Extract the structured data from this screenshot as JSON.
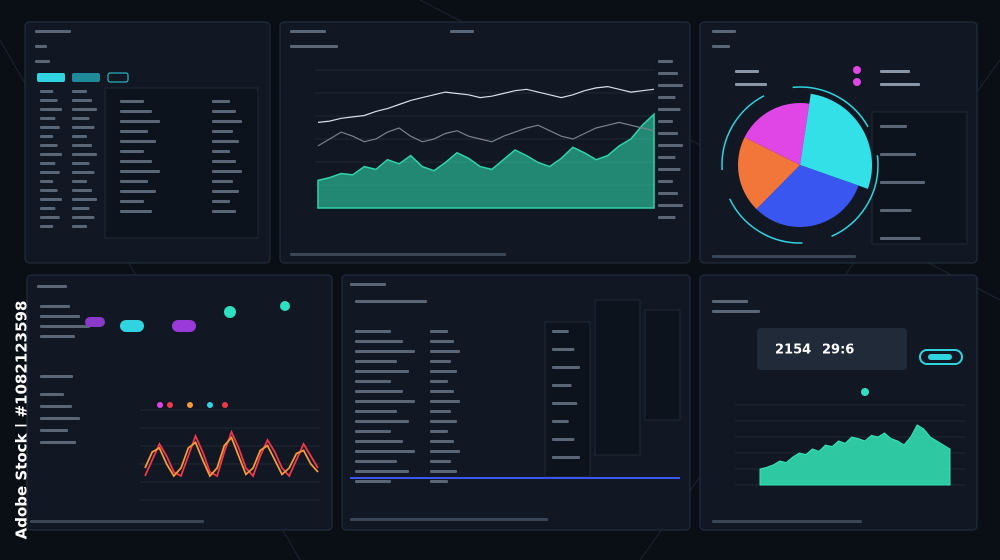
{
  "watermark": "Adobe Stock | #1082123598",
  "stats": [
    "2154",
    "29:6"
  ],
  "top_area_chart": {
    "type": "area",
    "ylim": [
      0,
      100
    ],
    "series": [
      {
        "name": null,
        "color": "#2fd4a8",
        "values": [
          20,
          22,
          25,
          24,
          30,
          28,
          35,
          32,
          38,
          30,
          27,
          33,
          40,
          36,
          30,
          28,
          35,
          42,
          38,
          33,
          30,
          36,
          44,
          40,
          35,
          38,
          45,
          50,
          60,
          68
        ]
      },
      {
        "name": null,
        "color": "#d8dde6",
        "values": [
          62,
          63,
          65,
          66,
          67,
          70,
          72,
          75,
          78,
          80,
          82,
          84,
          83,
          82,
          80,
          81,
          83,
          85,
          86,
          84,
          82,
          80,
          82,
          85,
          87,
          88,
          86,
          84,
          85,
          86
        ]
      },
      {
        "name": null,
        "color": "#7a8290",
        "values": [
          45,
          50,
          55,
          52,
          48,
          50,
          55,
          58,
          52,
          48,
          50,
          54,
          56,
          52,
          50,
          48,
          52,
          55,
          58,
          60,
          56,
          52,
          50,
          54,
          58,
          60,
          62,
          60,
          58,
          56
        ]
      }
    ]
  },
  "pie_chart": {
    "type": "pie",
    "values": [
      28,
      32,
      20,
      20
    ],
    "colors": [
      "#33e0e8",
      "#3a56f0",
      "#f2763a",
      "#e046e6"
    ]
  },
  "wave_chart": {
    "type": "line",
    "ylim": [
      0,
      100
    ],
    "series": [
      {
        "name": null,
        "color": "#f0384a",
        "values": [
          30,
          50,
          70,
          55,
          35,
          30,
          55,
          80,
          60,
          35,
          30,
          60,
          85,
          65,
          40,
          30,
          55,
          75,
          60,
          40,
          30,
          50,
          70,
          55,
          40
        ]
      },
      {
        "name": null,
        "color": "#f59a3a",
        "values": [
          40,
          60,
          65,
          45,
          30,
          40,
          65,
          72,
          50,
          30,
          40,
          68,
          78,
          55,
          32,
          40,
          62,
          68,
          50,
          32,
          40,
          58,
          62,
          45,
          35
        ]
      }
    ]
  },
  "bottom_area_chart": {
    "type": "area",
    "ylim": [
      0,
      100
    ],
    "color": "#34e8b8",
    "values": [
      20,
      22,
      25,
      30,
      28,
      35,
      40,
      38,
      45,
      42,
      50,
      48,
      55,
      52,
      60,
      58,
      55,
      62,
      60,
      65,
      58,
      55,
      50,
      60,
      75,
      70,
      60,
      55,
      50,
      45
    ]
  }
}
